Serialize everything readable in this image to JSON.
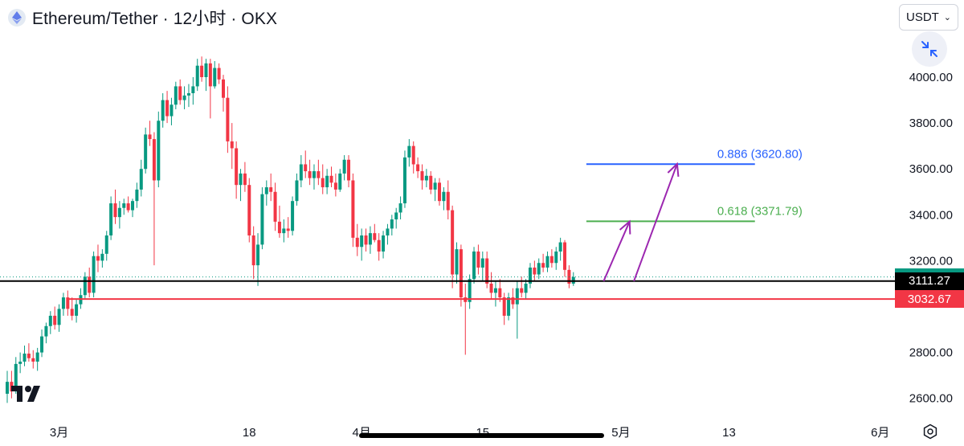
{
  "header": {
    "title": "Ethereum/Tether · 12小时 · OKX",
    "currency": "USDT"
  },
  "icons": {
    "logo": "ethereum-logo-icon",
    "currency_chevron": "chevron-down-icon",
    "collapse": "collapse-arrows-icon",
    "watermark": "tradingview-logo-icon",
    "settings": "settings-gear-icon"
  },
  "colors": {
    "up": "#089981",
    "down": "#f23645",
    "black_line": "#000000",
    "red_line": "#f23645",
    "fib_886": "#2962ff",
    "fib_618": "#4caf50",
    "arrows": "#9c27b0",
    "dotted_price": "#089981"
  },
  "chart_data": {
    "type": "candlestick",
    "y_axis": {
      "ticks": [
        4000,
        3800,
        3600,
        3400,
        3200,
        2800,
        2600
      ],
      "tick_labels": [
        "4000.00",
        "3800.00",
        "3600.00",
        "3400.00",
        "3200.00",
        "2800.00",
        "2600.00"
      ]
    },
    "x_axis": {
      "labels": [
        {
          "label": "3月",
          "index": 12
        },
        {
          "label": "18",
          "index": 56
        },
        {
          "label": "4月",
          "index": 82
        },
        {
          "label": "15",
          "index": 110
        },
        {
          "label": "5月",
          "index": 142
        },
        {
          "label": "13",
          "index": 167
        },
        {
          "label": "6月",
          "index": 202
        }
      ]
    },
    "price_tags": [
      {
        "label": "3129.02",
        "value": 3129.02,
        "color": "#089981"
      },
      {
        "label": "3111.27",
        "value": 3111.27,
        "color": "#000000"
      },
      {
        "label": "3032.67",
        "value": 3032.67,
        "color": "#f23645"
      }
    ],
    "horizontal_lines": [
      {
        "name": "support-black",
        "value": 3111.27,
        "start_index": -10
      },
      {
        "name": "support-red",
        "value": 3032.67,
        "start_index": 14
      }
    ],
    "fib_levels": [
      {
        "label": "0.886 (3620.80)",
        "value": 3620.8,
        "start_index": 134,
        "end_index": 173
      },
      {
        "label": "0.618 (3371.79)",
        "value": 3371.79,
        "start_index": 134,
        "end_index": 173
      }
    ],
    "projections": [
      {
        "from": {
          "index": 138,
          "value": 3111
        },
        "to": {
          "index": 144,
          "value": 3371
        }
      },
      {
        "from": {
          "index": 145,
          "value": 3111
        },
        "to": {
          "index": 155,
          "value": 3622
        }
      }
    ],
    "candles": [
      {
        "o": 2620,
        "h": 2720,
        "l": 2580,
        "c": 2672
      },
      {
        "o": 2672,
        "h": 2720,
        "l": 2600,
        "c": 2630
      },
      {
        "o": 2630,
        "h": 2780,
        "l": 2620,
        "c": 2750
      },
      {
        "o": 2750,
        "h": 2800,
        "l": 2710,
        "c": 2760
      },
      {
        "o": 2760,
        "h": 2830,
        "l": 2740,
        "c": 2795
      },
      {
        "o": 2795,
        "h": 2840,
        "l": 2760,
        "c": 2775
      },
      {
        "o": 2775,
        "h": 2810,
        "l": 2730,
        "c": 2760
      },
      {
        "o": 2760,
        "h": 2820,
        "l": 2720,
        "c": 2800
      },
      {
        "o": 2800,
        "h": 2900,
        "l": 2780,
        "c": 2870
      },
      {
        "o": 2870,
        "h": 2930,
        "l": 2840,
        "c": 2915
      },
      {
        "o": 2915,
        "h": 2980,
        "l": 2880,
        "c": 2960
      },
      {
        "o": 2960,
        "h": 3000,
        "l": 2900,
        "c": 2920
      },
      {
        "o": 2920,
        "h": 3010,
        "l": 2890,
        "c": 2990
      },
      {
        "o": 2990,
        "h": 3060,
        "l": 2960,
        "c": 3040
      },
      {
        "o": 3040,
        "h": 3070,
        "l": 2960,
        "c": 2990
      },
      {
        "o": 2990,
        "h": 3040,
        "l": 2940,
        "c": 2960
      },
      {
        "o": 2960,
        "h": 3030,
        "l": 2930,
        "c": 3010
      },
      {
        "o": 3010,
        "h": 3080,
        "l": 2990,
        "c": 3050
      },
      {
        "o": 3050,
        "h": 3150,
        "l": 3030,
        "c": 3130
      },
      {
        "o": 3130,
        "h": 3170,
        "l": 3040,
        "c": 3060
      },
      {
        "o": 3060,
        "h": 3240,
        "l": 3040,
        "c": 3220
      },
      {
        "o": 3220,
        "h": 3270,
        "l": 3150,
        "c": 3200
      },
      {
        "o": 3200,
        "h": 3250,
        "l": 3170,
        "c": 3230
      },
      {
        "o": 3230,
        "h": 3330,
        "l": 3200,
        "c": 3310
      },
      {
        "o": 3310,
        "h": 3480,
        "l": 3290,
        "c": 3450
      },
      {
        "o": 3450,
        "h": 3510,
        "l": 3360,
        "c": 3390
      },
      {
        "o": 3390,
        "h": 3460,
        "l": 3340,
        "c": 3430
      },
      {
        "o": 3430,
        "h": 3470,
        "l": 3400,
        "c": 3450
      },
      {
        "o": 3450,
        "h": 3480,
        "l": 3410,
        "c": 3420
      },
      {
        "o": 3420,
        "h": 3470,
        "l": 3390,
        "c": 3460
      },
      {
        "o": 3460,
        "h": 3540,
        "l": 3430,
        "c": 3510
      },
      {
        "o": 3510,
        "h": 3640,
        "l": 3480,
        "c": 3600
      },
      {
        "o": 3600,
        "h": 3780,
        "l": 3580,
        "c": 3750
      },
      {
        "o": 3750,
        "h": 3810,
        "l": 3700,
        "c": 3730
      },
      {
        "o": 3730,
        "h": 3760,
        "l": 3180,
        "c": 3550
      },
      {
        "o": 3550,
        "h": 3850,
        "l": 3520,
        "c": 3810
      },
      {
        "o": 3810,
        "h": 3930,
        "l": 3780,
        "c": 3900
      },
      {
        "o": 3900,
        "h": 3940,
        "l": 3800,
        "c": 3830
      },
      {
        "o": 3830,
        "h": 3910,
        "l": 3790,
        "c": 3880
      },
      {
        "o": 3880,
        "h": 3980,
        "l": 3860,
        "c": 3960
      },
      {
        "o": 3960,
        "h": 3990,
        "l": 3880,
        "c": 3900
      },
      {
        "o": 3900,
        "h": 3960,
        "l": 3860,
        "c": 3920
      },
      {
        "o": 3920,
        "h": 3970,
        "l": 3870,
        "c": 3930
      },
      {
        "o": 3930,
        "h": 4000,
        "l": 3880,
        "c": 3960
      },
      {
        "o": 3960,
        "h": 4080,
        "l": 3940,
        "c": 4050
      },
      {
        "o": 4050,
        "h": 4090,
        "l": 3980,
        "c": 4000
      },
      {
        "o": 4000,
        "h": 4080,
        "l": 3940,
        "c": 4060
      },
      {
        "o": 4060,
        "h": 4080,
        "l": 3820,
        "c": 3960
      },
      {
        "o": 3960,
        "h": 4070,
        "l": 3950,
        "c": 4040
      },
      {
        "o": 4040,
        "h": 4060,
        "l": 3970,
        "c": 3990
      },
      {
        "o": 3990,
        "h": 4010,
        "l": 3850,
        "c": 3910
      },
      {
        "o": 3910,
        "h": 3960,
        "l": 3670,
        "c": 3720
      },
      {
        "o": 3720,
        "h": 3800,
        "l": 3600,
        "c": 3690
      },
      {
        "o": 3690,
        "h": 3720,
        "l": 3470,
        "c": 3530
      },
      {
        "o": 3530,
        "h": 3600,
        "l": 3460,
        "c": 3580
      },
      {
        "o": 3580,
        "h": 3630,
        "l": 3500,
        "c": 3530
      },
      {
        "o": 3530,
        "h": 3560,
        "l": 3280,
        "c": 3310
      },
      {
        "o": 3310,
        "h": 3350,
        "l": 3120,
        "c": 3180
      },
      {
        "o": 3180,
        "h": 3320,
        "l": 3090,
        "c": 3270
      },
      {
        "o": 3270,
        "h": 3520,
        "l": 3250,
        "c": 3490
      },
      {
        "o": 3490,
        "h": 3550,
        "l": 3440,
        "c": 3520
      },
      {
        "o": 3520,
        "h": 3580,
        "l": 3460,
        "c": 3500
      },
      {
        "o": 3500,
        "h": 3540,
        "l": 3330,
        "c": 3370
      },
      {
        "o": 3370,
        "h": 3440,
        "l": 3300,
        "c": 3320
      },
      {
        "o": 3320,
        "h": 3380,
        "l": 3280,
        "c": 3340
      },
      {
        "o": 3340,
        "h": 3390,
        "l": 3300,
        "c": 3330
      },
      {
        "o": 3330,
        "h": 3480,
        "l": 3310,
        "c": 3460
      },
      {
        "o": 3460,
        "h": 3580,
        "l": 3440,
        "c": 3550
      },
      {
        "o": 3550,
        "h": 3660,
        "l": 3520,
        "c": 3620
      },
      {
        "o": 3620,
        "h": 3680,
        "l": 3560,
        "c": 3590
      },
      {
        "o": 3590,
        "h": 3640,
        "l": 3530,
        "c": 3560
      },
      {
        "o": 3560,
        "h": 3620,
        "l": 3510,
        "c": 3590
      },
      {
        "o": 3590,
        "h": 3640,
        "l": 3530,
        "c": 3560
      },
      {
        "o": 3560,
        "h": 3620,
        "l": 3490,
        "c": 3520
      },
      {
        "o": 3520,
        "h": 3600,
        "l": 3490,
        "c": 3570
      },
      {
        "o": 3570,
        "h": 3610,
        "l": 3520,
        "c": 3540
      },
      {
        "o": 3540,
        "h": 3580,
        "l": 3480,
        "c": 3510
      },
      {
        "o": 3510,
        "h": 3600,
        "l": 3500,
        "c": 3580
      },
      {
        "o": 3580,
        "h": 3660,
        "l": 3550,
        "c": 3640
      },
      {
        "o": 3640,
        "h": 3660,
        "l": 3520,
        "c": 3550
      },
      {
        "o": 3550,
        "h": 3580,
        "l": 3260,
        "c": 3300
      },
      {
        "o": 3300,
        "h": 3360,
        "l": 3220,
        "c": 3260
      },
      {
        "o": 3260,
        "h": 3340,
        "l": 3200,
        "c": 3310
      },
      {
        "o": 3310,
        "h": 3340,
        "l": 3240,
        "c": 3270
      },
      {
        "o": 3270,
        "h": 3350,
        "l": 3230,
        "c": 3320
      },
      {
        "o": 3320,
        "h": 3360,
        "l": 3280,
        "c": 3290
      },
      {
        "o": 3290,
        "h": 3320,
        "l": 3200,
        "c": 3240
      },
      {
        "o": 3240,
        "h": 3330,
        "l": 3210,
        "c": 3310
      },
      {
        "o": 3310,
        "h": 3360,
        "l": 3270,
        "c": 3340
      },
      {
        "o": 3340,
        "h": 3400,
        "l": 3310,
        "c": 3380
      },
      {
        "o": 3380,
        "h": 3430,
        "l": 3340,
        "c": 3410
      },
      {
        "o": 3410,
        "h": 3480,
        "l": 3380,
        "c": 3450
      },
      {
        "o": 3450,
        "h": 3680,
        "l": 3430,
        "c": 3650
      },
      {
        "o": 3650,
        "h": 3730,
        "l": 3610,
        "c": 3700
      },
      {
        "o": 3700,
        "h": 3720,
        "l": 3580,
        "c": 3620
      },
      {
        "o": 3620,
        "h": 3650,
        "l": 3560,
        "c": 3590
      },
      {
        "o": 3590,
        "h": 3620,
        "l": 3510,
        "c": 3550
      },
      {
        "o": 3550,
        "h": 3600,
        "l": 3520,
        "c": 3570
      },
      {
        "o": 3570,
        "h": 3590,
        "l": 3490,
        "c": 3510
      },
      {
        "o": 3510,
        "h": 3560,
        "l": 3460,
        "c": 3540
      },
      {
        "o": 3540,
        "h": 3560,
        "l": 3440,
        "c": 3460
      },
      {
        "o": 3460,
        "h": 3520,
        "l": 3420,
        "c": 3500
      },
      {
        "o": 3500,
        "h": 3550,
        "l": 3380,
        "c": 3420
      },
      {
        "o": 3420,
        "h": 3440,
        "l": 3080,
        "c": 3140
      },
      {
        "o": 3140,
        "h": 3280,
        "l": 3100,
        "c": 3250
      },
      {
        "o": 3250,
        "h": 3270,
        "l": 3000,
        "c": 3040
      },
      {
        "o": 3040,
        "h": 3100,
        "l": 2790,
        "c": 3020
      },
      {
        "o": 3020,
        "h": 3140,
        "l": 2990,
        "c": 3120
      },
      {
        "o": 3120,
        "h": 3260,
        "l": 3100,
        "c": 3240
      },
      {
        "o": 3240,
        "h": 3270,
        "l": 3140,
        "c": 3170
      },
      {
        "o": 3170,
        "h": 3240,
        "l": 3110,
        "c": 3210
      },
      {
        "o": 3210,
        "h": 3240,
        "l": 3080,
        "c": 3100
      },
      {
        "o": 3100,
        "h": 3150,
        "l": 3030,
        "c": 3060
      },
      {
        "o": 3060,
        "h": 3110,
        "l": 3000,
        "c": 3080
      },
      {
        "o": 3080,
        "h": 3120,
        "l": 3020,
        "c": 3040
      },
      {
        "o": 3040,
        "h": 3060,
        "l": 2920,
        "c": 2960
      },
      {
        "o": 2960,
        "h": 3060,
        "l": 2940,
        "c": 3040
      },
      {
        "o": 3040,
        "h": 3080,
        "l": 2990,
        "c": 3010
      },
      {
        "o": 3010,
        "h": 3110,
        "l": 2860,
        "c": 3080
      },
      {
        "o": 3080,
        "h": 3130,
        "l": 3040,
        "c": 3060
      },
      {
        "o": 3060,
        "h": 3120,
        "l": 3030,
        "c": 3100
      },
      {
        "o": 3100,
        "h": 3190,
        "l": 3080,
        "c": 3170
      },
      {
        "o": 3170,
        "h": 3200,
        "l": 3110,
        "c": 3140
      },
      {
        "o": 3140,
        "h": 3210,
        "l": 3120,
        "c": 3190
      },
      {
        "o": 3190,
        "h": 3230,
        "l": 3150,
        "c": 3170
      },
      {
        "o": 3170,
        "h": 3240,
        "l": 3150,
        "c": 3220
      },
      {
        "o": 3220,
        "h": 3250,
        "l": 3170,
        "c": 3190
      },
      {
        "o": 3190,
        "h": 3260,
        "l": 3160,
        "c": 3240
      },
      {
        "o": 3240,
        "h": 3300,
        "l": 3200,
        "c": 3280
      },
      {
        "o": 3280,
        "h": 3290,
        "l": 3130,
        "c": 3160
      },
      {
        "o": 3160,
        "h": 3180,
        "l": 3080,
        "c": 3100
      },
      {
        "o": 3100,
        "h": 3150,
        "l": 3090,
        "c": 3129
      }
    ]
  }
}
